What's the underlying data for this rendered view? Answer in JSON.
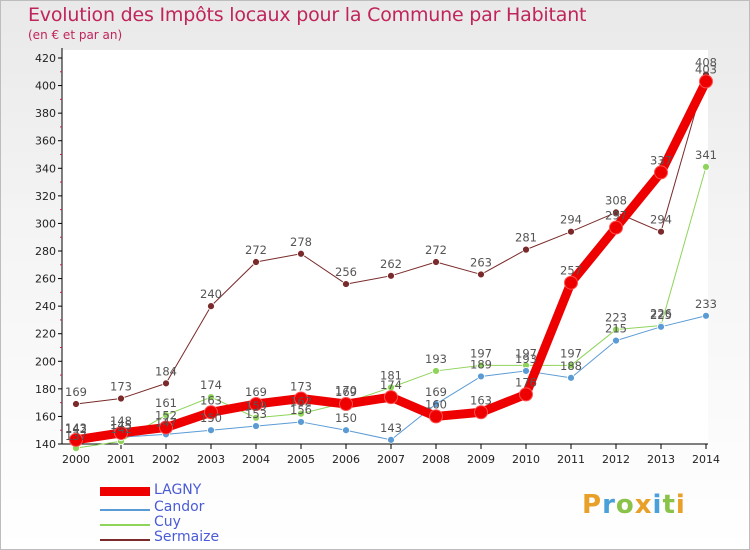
{
  "header": {
    "title": "Evolution des Impôts locaux pour la Commune par Habitant",
    "subtitle": "(en € et par an)"
  },
  "logo": {
    "letters": [
      "P",
      "r",
      "o",
      "x",
      "i",
      "t",
      "i"
    ],
    "colors": [
      "#e8a028",
      "#4aa0d8",
      "#8bc34a",
      "#e8a028",
      "#4aa0d8",
      "#8bc34a",
      "#e8a028"
    ]
  },
  "chart_data": {
    "type": "line",
    "x": [
      "2000",
      "2001",
      "2002",
      "2003",
      "2004",
      "2005",
      "2006",
      "2007",
      "2008",
      "2009",
      "2010",
      "2011",
      "2012",
      "2013",
      "2014"
    ],
    "yticks": [
      140,
      160,
      180,
      200,
      220,
      240,
      260,
      280,
      300,
      320,
      340,
      360,
      380,
      400,
      420
    ],
    "ylim": [
      140,
      420
    ],
    "grid": false,
    "legend_position": "bottom-left",
    "series": [
      {
        "name": "Sermaize",
        "color": "#7a2a2a",
        "width": 1,
        "values": [
          169,
          173,
          184,
          240,
          272,
          278,
          256,
          262,
          272,
          263,
          281,
          294,
          308,
          294,
          408
        ],
        "labels": [
          "169",
          "173",
          "184",
          "240",
          "272",
          "278",
          "256",
          "262",
          "272",
          "263",
          "281",
          "294",
          "308",
          "294",
          "408"
        ]
      },
      {
        "name": "Cuy",
        "color": "#8fd45a",
        "width": 1,
        "values": [
          137,
          142,
          161,
          174,
          159,
          162,
          170,
          181,
          193,
          197,
          197,
          197,
          223,
          226,
          341
        ],
        "labels": [
          "137",
          "142",
          "161",
          "174",
          "159",
          "162",
          "170",
          "181",
          "193",
          "197",
          "197",
          "197",
          "223",
          "226",
          "341"
        ]
      },
      {
        "name": "Candor",
        "color": "#5b9bd5",
        "width": 1,
        "values": [
          142,
          145,
          147,
          150,
          153,
          156,
          150,
          143,
          169,
          189,
          193,
          188,
          215,
          225,
          233
        ],
        "labels": [
          "142",
          "145",
          "147",
          "150",
          "153",
          "156",
          "150",
          "143",
          "169",
          "189",
          "193",
          "188",
          "215",
          "225",
          "233"
        ]
      },
      {
        "name": "LAGNY",
        "color": "#ee0000",
        "width": 9,
        "values": [
          143,
          148,
          152,
          163,
          169,
          173,
          169,
          174,
          160,
          163,
          176,
          257,
          297,
          337,
          403
        ],
        "labels": [
          "143",
          "148",
          "152",
          "163",
          "169",
          "173",
          "169",
          "174",
          "160",
          "163",
          "176",
          "257",
          "297",
          "337",
          "403"
        ]
      }
    ],
    "legend": [
      "LAGNY",
      "Candor",
      "Cuy",
      "Sermaize"
    ]
  }
}
